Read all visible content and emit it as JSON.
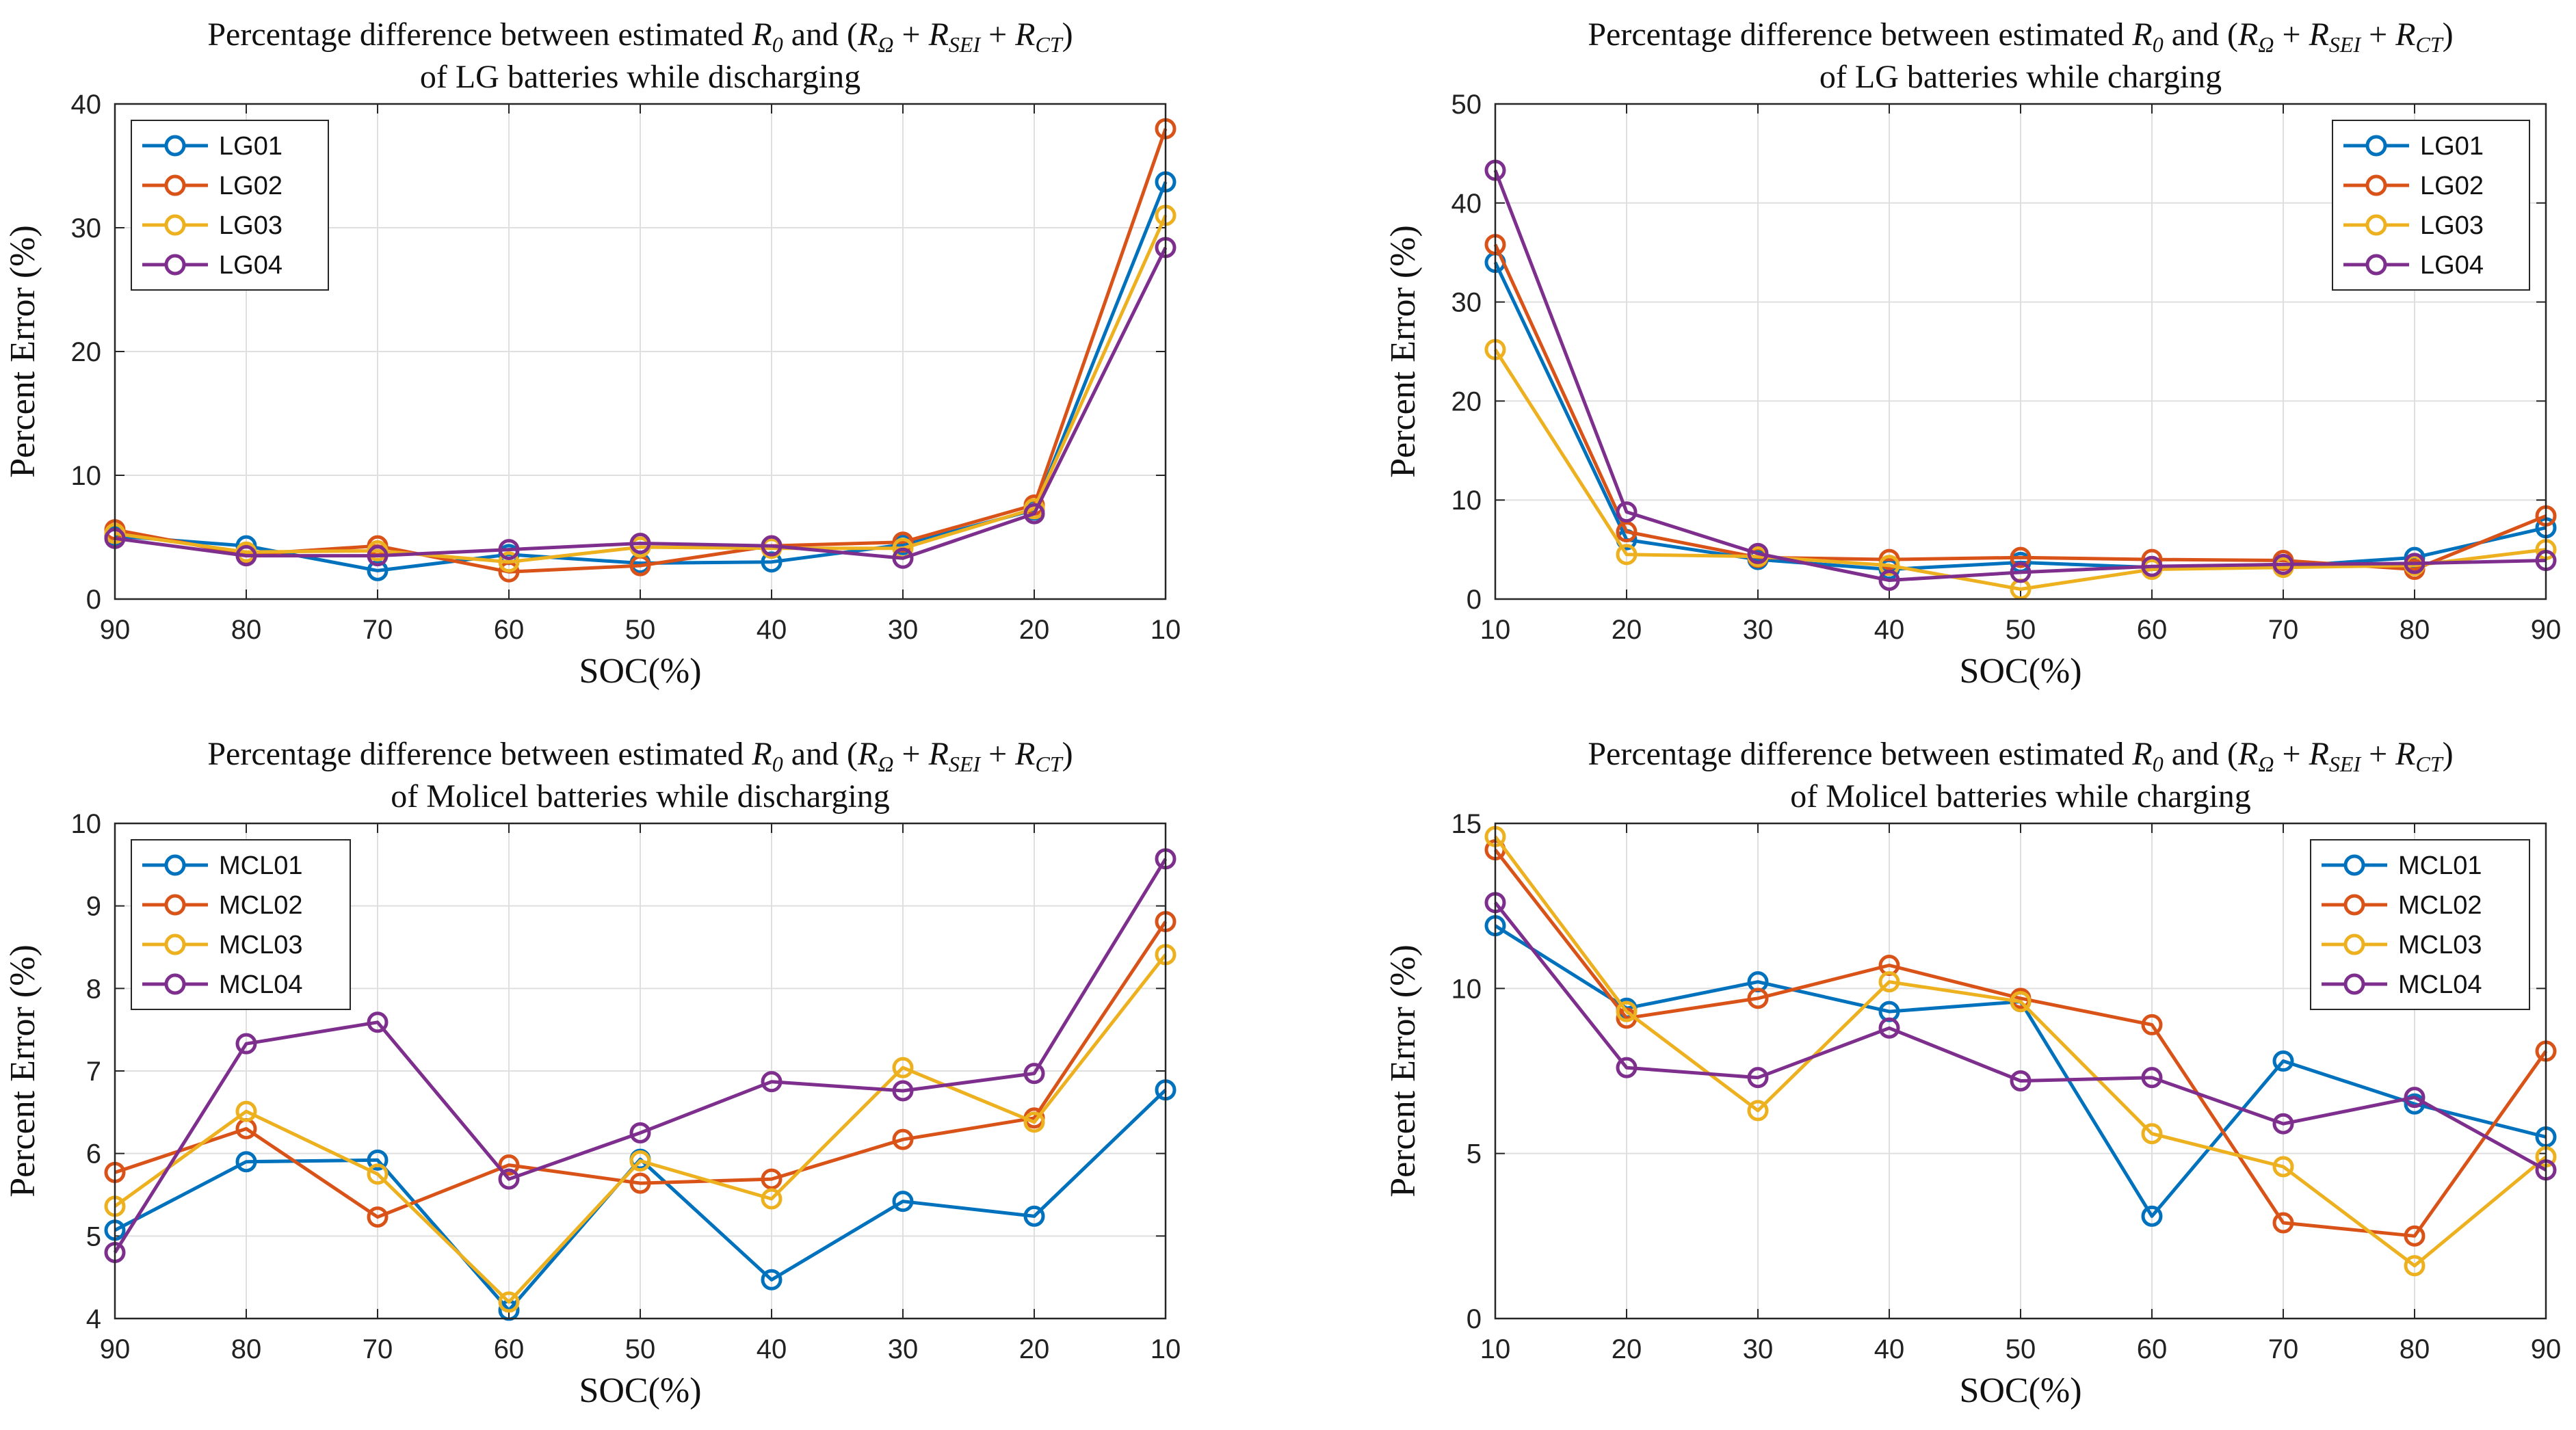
{
  "chart_data": [
    {
      "type": "line",
      "title_lines": [
        [
          "Percentage difference between estimated ",
          "R",
          "0",
          " and (",
          "R",
          "Ω",
          " + ",
          "R",
          "SEI",
          " + ",
          "R",
          "CT",
          ")"
        ],
        [
          "of LG batteries while discharging"
        ]
      ],
      "xlabel": "SOC(%)",
      "ylabel": "Percent Error (%)",
      "categories": [
        "90",
        "80",
        "70",
        "60",
        "50",
        "40",
        "30",
        "20",
        "10"
      ],
      "ylim": [
        0,
        40
      ],
      "yticks": [
        0,
        10,
        20,
        30,
        40
      ],
      "grid": true,
      "legend_position": "top-left",
      "series": [
        {
          "name": "LG01",
          "color": "#0072BD",
          "values": [
            5.1,
            4.3,
            2.3,
            3.6,
            2.9,
            3.0,
            4.4,
            7.2,
            33.7
          ]
        },
        {
          "name": "LG02",
          "color": "#D95319",
          "values": [
            5.6,
            3.6,
            4.3,
            2.2,
            2.7,
            4.3,
            4.6,
            7.6,
            38.0
          ]
        },
        {
          "name": "LG03",
          "color": "#EDB120",
          "values": [
            5.3,
            3.8,
            3.9,
            3.0,
            4.2,
            4.1,
            4.1,
            7.3,
            31.0
          ]
        },
        {
          "name": "LG04",
          "color": "#7E2F8E",
          "values": [
            4.9,
            3.5,
            3.5,
            4.0,
            4.5,
            4.3,
            3.3,
            6.9,
            28.4
          ]
        }
      ]
    },
    {
      "type": "line",
      "title_lines": [
        [
          "Percentage difference between estimated ",
          "R",
          "0",
          " and (",
          "R",
          "Ω",
          " + ",
          "R",
          "SEI",
          " + ",
          "R",
          "CT",
          ")"
        ],
        [
          "of LG batteries while charging"
        ]
      ],
      "xlabel": "SOC(%)",
      "ylabel": "Percent Error (%)",
      "categories": [
        "10",
        "20",
        "30",
        "40",
        "50",
        "60",
        "70",
        "80",
        "90"
      ],
      "ylim": [
        0,
        50
      ],
      "yticks": [
        0,
        10,
        20,
        30,
        40,
        50
      ],
      "grid": true,
      "legend_position": "top-right",
      "series": [
        {
          "name": "LG01",
          "color": "#0072BD",
          "values": [
            34.0,
            6.0,
            4.0,
            3.0,
            3.7,
            3.2,
            3.3,
            4.2,
            7.2
          ]
        },
        {
          "name": "LG02",
          "color": "#D95319",
          "values": [
            35.8,
            6.8,
            4.2,
            4.0,
            4.2,
            4.0,
            3.9,
            3.0,
            8.4
          ]
        },
        {
          "name": "LG03",
          "color": "#EDB120",
          "values": [
            25.2,
            4.5,
            4.3,
            3.4,
            1.0,
            3.0,
            3.2,
            3.4,
            5.0
          ]
        },
        {
          "name": "LG04",
          "color": "#7E2F8E",
          "values": [
            43.3,
            8.8,
            4.6,
            1.9,
            2.7,
            3.3,
            3.5,
            3.6,
            3.9
          ]
        }
      ]
    },
    {
      "type": "line",
      "title_lines": [
        [
          "Percentage difference between estimated ",
          "R",
          "0",
          " and (",
          "R",
          "Ω",
          " + ",
          "R",
          "SEI",
          " + ",
          "R",
          "CT",
          ")"
        ],
        [
          "of Molicel batteries while discharging"
        ]
      ],
      "xlabel": "SOC(%)",
      "ylabel": "Percent Error (%)",
      "categories": [
        "90",
        "80",
        "70",
        "60",
        "50",
        "40",
        "30",
        "20",
        "10"
      ],
      "ylim": [
        4,
        10
      ],
      "yticks": [
        4,
        5,
        6,
        7,
        8,
        9,
        10
      ],
      "grid": true,
      "legend_position": "top-left",
      "series": [
        {
          "name": "MCL01",
          "color": "#0072BD",
          "values": [
            5.07,
            5.9,
            5.92,
            4.1,
            5.93,
            4.47,
            5.42,
            5.24,
            6.77
          ]
        },
        {
          "name": "MCL02",
          "color": "#D95319",
          "values": [
            5.77,
            6.3,
            5.23,
            5.86,
            5.64,
            5.69,
            6.17,
            6.43,
            8.81
          ]
        },
        {
          "name": "MCL03",
          "color": "#EDB120",
          "values": [
            5.36,
            6.51,
            5.75,
            4.2,
            5.91,
            5.45,
            7.04,
            6.38,
            8.41
          ]
        },
        {
          "name": "MCL04",
          "color": "#7E2F8E",
          "values": [
            4.8,
            7.33,
            7.59,
            5.69,
            6.25,
            6.87,
            6.76,
            6.97,
            9.57
          ]
        }
      ]
    },
    {
      "type": "line",
      "title_lines": [
        [
          "Percentage difference between estimated ",
          "R",
          "0",
          " and (",
          "R",
          "Ω",
          " + ",
          "R",
          "SEI",
          " + ",
          "R",
          "CT",
          ")"
        ],
        [
          "of Molicel batteries while charging"
        ]
      ],
      "xlabel": "SOC(%)",
      "ylabel": "Percent Error (%)",
      "categories": [
        "10",
        "20",
        "30",
        "40",
        "50",
        "60",
        "70",
        "80",
        "90"
      ],
      "ylim": [
        0,
        15
      ],
      "yticks": [
        0,
        5,
        10,
        15
      ],
      "grid": true,
      "legend_position": "top-right",
      "series": [
        {
          "name": "MCL01",
          "color": "#0072BD",
          "values": [
            11.9,
            9.4,
            10.2,
            9.3,
            9.6,
            3.1,
            7.8,
            6.5,
            5.5
          ]
        },
        {
          "name": "MCL02",
          "color": "#D95319",
          "values": [
            14.2,
            9.1,
            9.7,
            10.7,
            9.7,
            8.9,
            2.9,
            2.5,
            8.1
          ]
        },
        {
          "name": "MCL03",
          "color": "#EDB120",
          "values": [
            14.6,
            9.3,
            6.3,
            10.2,
            9.6,
            5.6,
            4.6,
            1.6,
            4.9
          ]
        },
        {
          "name": "MCL04",
          "color": "#7E2F8E",
          "values": [
            12.6,
            7.6,
            7.3,
            8.8,
            7.2,
            7.3,
            5.9,
            6.7,
            4.5
          ]
        }
      ]
    }
  ]
}
